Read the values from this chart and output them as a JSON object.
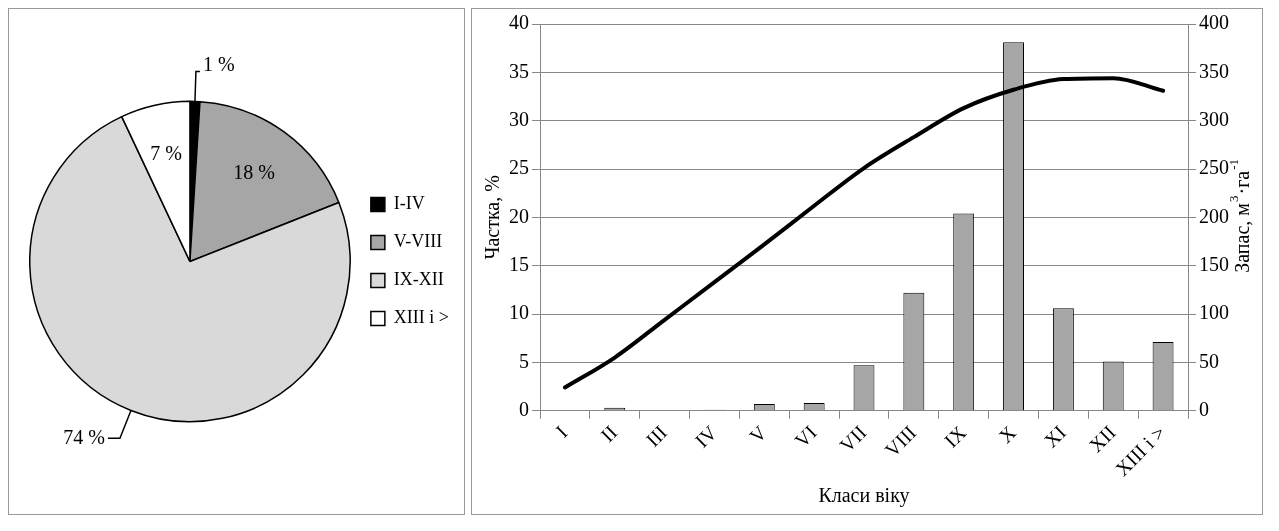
{
  "chart_data": [
    {
      "type": "pie",
      "categories": [
        "I-IV",
        "V-VIII",
        "IX-XII",
        "XIII і >"
      ],
      "values": [
        1,
        18,
        74,
        7
      ],
      "colors": [
        "#000000",
        "#a6a6a6",
        "#d9d9d9",
        "#ffffff"
      ],
      "value_labels": [
        "1 %",
        "18 %",
        "74 %",
        "7 %"
      ],
      "legend": "right"
    },
    {
      "type": "bar",
      "categories": [
        "I",
        "II",
        "III",
        "IV",
        "V",
        "VI",
        "VII",
        "VIII",
        "IX",
        "X",
        "XI",
        "XII",
        "XIII і >"
      ],
      "xlabel": "Класи віку",
      "ylabel": "Частка, %",
      "y2label": "Запас, м$^{3}$·га$^{-1}$",
      "ylim": [
        0,
        40
      ],
      "yticks": [
        0,
        5,
        10,
        15,
        20,
        25,
        30,
        35,
        40
      ],
      "y2lim": [
        0,
        400
      ],
      "y2ticks": [
        0,
        50,
        100,
        150,
        200,
        250,
        300,
        350,
        400
      ],
      "grid": "y",
      "legend": false,
      "series": [
        {
          "type": "bar",
          "color": "#a6a6a6",
          "values": [
            0,
            0.3,
            0,
            0.1,
            0.7,
            0.8,
            4.7,
            12.2,
            20.4,
            38.1,
            10.6,
            5.1,
            7.1
          ]
        },
        {
          "type": "line",
          "axis": "y2",
          "color": "#000000",
          "marker": "none",
          "values": [
            24,
            55,
            94,
            133,
            172,
            212,
            251,
            283,
            313,
            332,
            343,
            344,
            331
          ]
        }
      ]
    }
  ]
}
